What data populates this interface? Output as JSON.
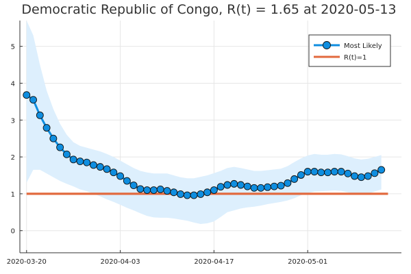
{
  "chart_data": {
    "type": "line",
    "title": "Democratic Republic of Congo, R(t) = 1.65 at 2020-05-13",
    "xlabel": "",
    "ylabel": "",
    "xlim": [
      "2020-03-19",
      "2020-05-15"
    ],
    "ylim": [
      -0.6,
      5.7
    ],
    "x_ticks": [
      "2020-03-20",
      "2020-04-03",
      "2020-04-17",
      "2020-05-01"
    ],
    "y_ticks": [
      0,
      1,
      2,
      3,
      4,
      5
    ],
    "grid": true,
    "legend_position": "top-right",
    "series": [
      {
        "name": "Most Likely",
        "color": "#0f8ee0",
        "x_start": "2020-03-20",
        "x_end": "2020-05-13",
        "values": [
          3.68,
          3.55,
          3.13,
          2.79,
          2.5,
          2.26,
          2.07,
          1.93,
          1.88,
          1.85,
          1.78,
          1.73,
          1.67,
          1.58,
          1.48,
          1.35,
          1.23,
          1.13,
          1.1,
          1.1,
          1.12,
          1.08,
          1.04,
          0.99,
          0.96,
          0.96,
          0.99,
          1.04,
          1.1,
          1.19,
          1.24,
          1.27,
          1.24,
          1.2,
          1.16,
          1.16,
          1.18,
          1.2,
          1.22,
          1.29,
          1.4,
          1.51,
          1.6,
          1.6,
          1.58,
          1.58,
          1.6,
          1.6,
          1.55,
          1.48,
          1.45,
          1.48,
          1.56,
          1.65
        ],
        "upper": [
          6.5,
          5.3,
          4.5,
          3.8,
          3.3,
          2.9,
          2.6,
          2.4,
          2.3,
          2.25,
          2.2,
          2.15,
          2.08,
          2.0,
          1.9,
          1.8,
          1.7,
          1.62,
          1.58,
          1.55,
          1.55,
          1.55,
          1.5,
          1.45,
          1.42,
          1.42,
          1.46,
          1.5,
          1.56,
          1.62,
          1.7,
          1.73,
          1.7,
          1.66,
          1.62,
          1.62,
          1.64,
          1.66,
          1.68,
          1.75,
          1.86,
          1.96,
          2.04,
          2.08,
          2.06,
          2.06,
          2.08,
          2.07,
          2.02,
          1.96,
          1.93,
          1.95,
          2.0,
          2.05
        ],
        "lower": [
          1.3,
          1.65,
          1.65,
          1.55,
          1.45,
          1.35,
          1.27,
          1.2,
          1.12,
          1.07,
          1.0,
          0.93,
          0.85,
          0.78,
          0.7,
          0.62,
          0.55,
          0.47,
          0.4,
          0.36,
          0.35,
          0.35,
          0.33,
          0.3,
          0.27,
          0.22,
          0.18,
          0.2,
          0.25,
          0.37,
          0.5,
          0.55,
          0.6,
          0.63,
          0.65,
          0.68,
          0.72,
          0.75,
          0.78,
          0.82,
          0.88,
          0.96,
          1.02,
          1.06,
          1.07,
          1.08,
          1.09,
          1.08,
          1.04,
          1.0,
          0.98,
          1.0,
          1.06,
          1.12
        ]
      },
      {
        "name": "R(t)=1",
        "color": "#e26a3e",
        "x": [
          "2020-03-20",
          "2020-05-13"
        ],
        "values": [
          1,
          1
        ]
      }
    ],
    "band_color": "#ddeffd"
  }
}
